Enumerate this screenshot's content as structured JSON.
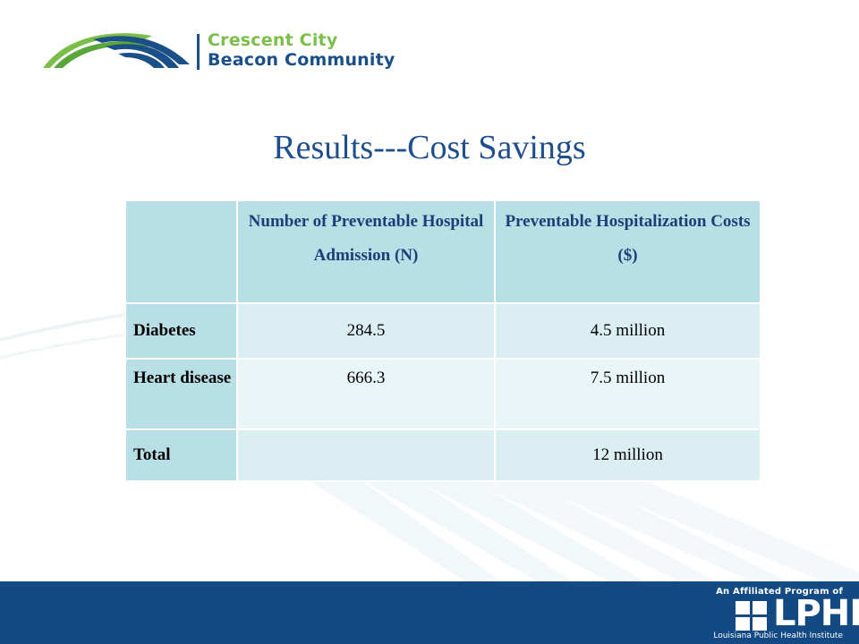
{
  "logo": {
    "line1": "Crescent City",
    "line2": "Beacon Community",
    "colors": {
      "green": "#7bbf4a",
      "blue": "#1a4f87"
    }
  },
  "slide": {
    "title": "Results---Cost Savings"
  },
  "table": {
    "headers": [
      "",
      "Number of Preventable Hospital Admission (N)",
      "Preventable Hospitalization Costs ($)"
    ],
    "rows": [
      {
        "label": "Diabetes",
        "admissions": "284.5",
        "costs": "4.5 million"
      },
      {
        "label": "Heart disease",
        "admissions": "666.3",
        "costs": "7.5 million"
      },
      {
        "label": "Total",
        "admissions": "",
        "costs": "12 million"
      }
    ],
    "colors": {
      "header": "#b8dee6",
      "row_light": "#dbeef2",
      "row_lighter": "#eaf5f8"
    }
  },
  "footer": {
    "affiliated": "An Affiliated Program of",
    "org_short": "LPHI",
    "org_full": "Louisiana Public Health Institute",
    "color": "#134a83"
  }
}
